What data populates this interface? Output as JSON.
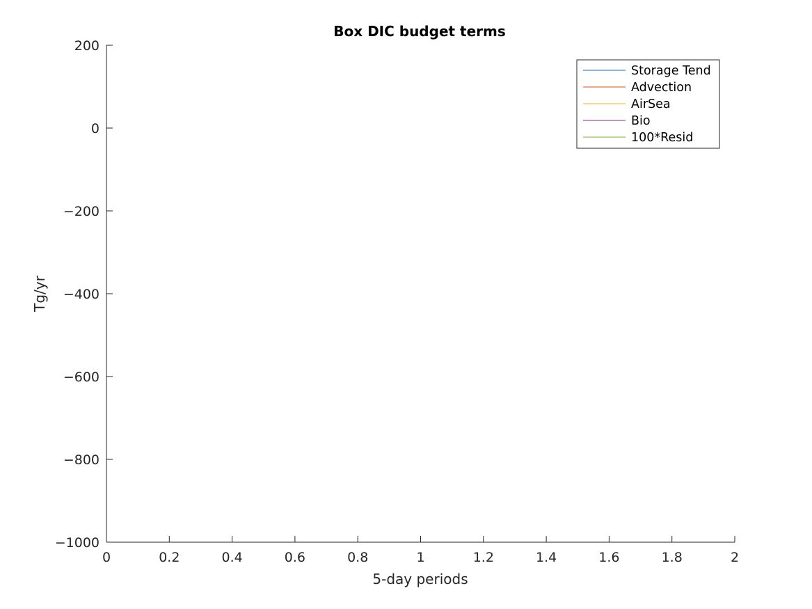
{
  "chart_data": {
    "type": "line",
    "title": "Box DIC budget terms",
    "xlabel": "5-day periods",
    "ylabel": "Tg/yr",
    "xlim": [
      0,
      2
    ],
    "ylim": [
      -1000,
      200
    ],
    "xticks": [
      0,
      0.2,
      0.4,
      0.6,
      0.8,
      1,
      1.2,
      1.4,
      1.6,
      1.8,
      2
    ],
    "xtick_labels": [
      "0",
      "0.2",
      "0.4",
      "0.6",
      "0.8",
      "1",
      "1.2",
      "1.4",
      "1.6",
      "1.8",
      "2"
    ],
    "yticks": [
      200,
      0,
      -200,
      -400,
      -600,
      -800,
      -1000
    ],
    "ytick_labels": [
      "200",
      "0",
      "−200",
      "−400",
      "−600",
      "−800",
      "−1000"
    ],
    "grid": false,
    "legend_position": "top-right",
    "series": [
      {
        "name": "Storage Tend",
        "color": "#0072BD",
        "x": [],
        "y": []
      },
      {
        "name": "Advection",
        "color": "#D95319",
        "x": [],
        "y": []
      },
      {
        "name": "AirSea",
        "color": "#EDB120",
        "x": [],
        "y": []
      },
      {
        "name": "Bio",
        "color": "#7E2F8E",
        "x": [],
        "y": []
      },
      {
        "name": "100*Resid",
        "color": "#77AC30",
        "x": [],
        "y": []
      }
    ]
  }
}
